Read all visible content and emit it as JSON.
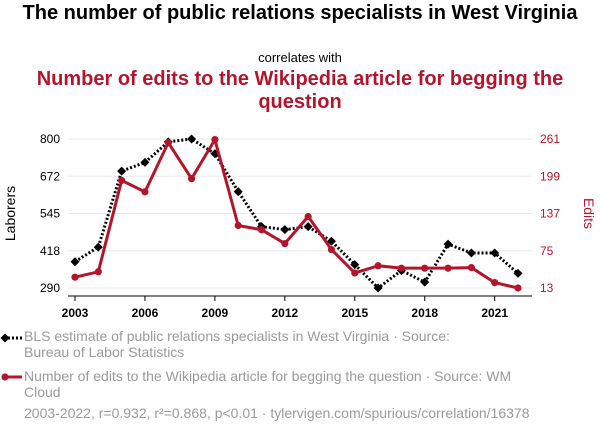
{
  "chart_data": {
    "type": "line",
    "title": "The number of public relations specialists in West Virginia",
    "correlates_label": "correlates with",
    "subtitle": "Number of edits to the Wikipedia article for begging the question",
    "x": [
      2003,
      2004,
      2005,
      2006,
      2007,
      2008,
      2009,
      2010,
      2011,
      2012,
      2013,
      2014,
      2015,
      2016,
      2017,
      2018,
      2019,
      2020,
      2021,
      2022
    ],
    "x_ticks": [
      "2003",
      "2006",
      "2009",
      "2012",
      "2015",
      "2018",
      "2021"
    ],
    "xlim": [
      2002.7,
      2022.6
    ],
    "series": [
      {
        "name": "BLS estimate of public relations specialists in West Virginia",
        "axis": "left",
        "color": "#000000",
        "style": "dotted",
        "marker": "diamond",
        "values": [
          380,
          430,
          690,
          720,
          790,
          800,
          750,
          620,
          500,
          490,
          500,
          450,
          370,
          290,
          350,
          310,
          440,
          410,
          410,
          340
        ]
      },
      {
        "name": "Number of edits to the Wikipedia article for begging the question",
        "axis": "right",
        "color": "#b5152b",
        "style": "solid",
        "marker": "circle",
        "values": [
          31,
          40,
          192,
          173,
          255,
          195,
          260,
          117,
          110,
          87,
          132,
          77,
          38,
          50,
          46,
          46,
          46,
          47,
          22,
          13
        ]
      }
    ],
    "y_left": {
      "label": "Laborers",
      "ticks": [
        "800",
        "672",
        "545",
        "418",
        "290"
      ],
      "lim": [
        290,
        800
      ]
    },
    "y_right": {
      "label": "Edits",
      "ticks": [
        "261",
        "199",
        "137",
        "75",
        "13"
      ],
      "lim": [
        13,
        261
      ]
    },
    "grid": true
  },
  "legend": {
    "series1": "BLS estimate of public relations specialists in West Virginia · Source: Bureau of Labor Statistics",
    "series2": "Number of edits to the Wikipedia article for begging the question · Source: WM Cloud"
  },
  "footer": "2003-2022, r=0.932, r²=0.868, p<0.01 · tylervigen.com/spurious/correlation/16378",
  "colors": {
    "left": "#000000",
    "right": "#b5152b",
    "grid": "#e8e8e8",
    "muted": "#9a9a9a"
  }
}
